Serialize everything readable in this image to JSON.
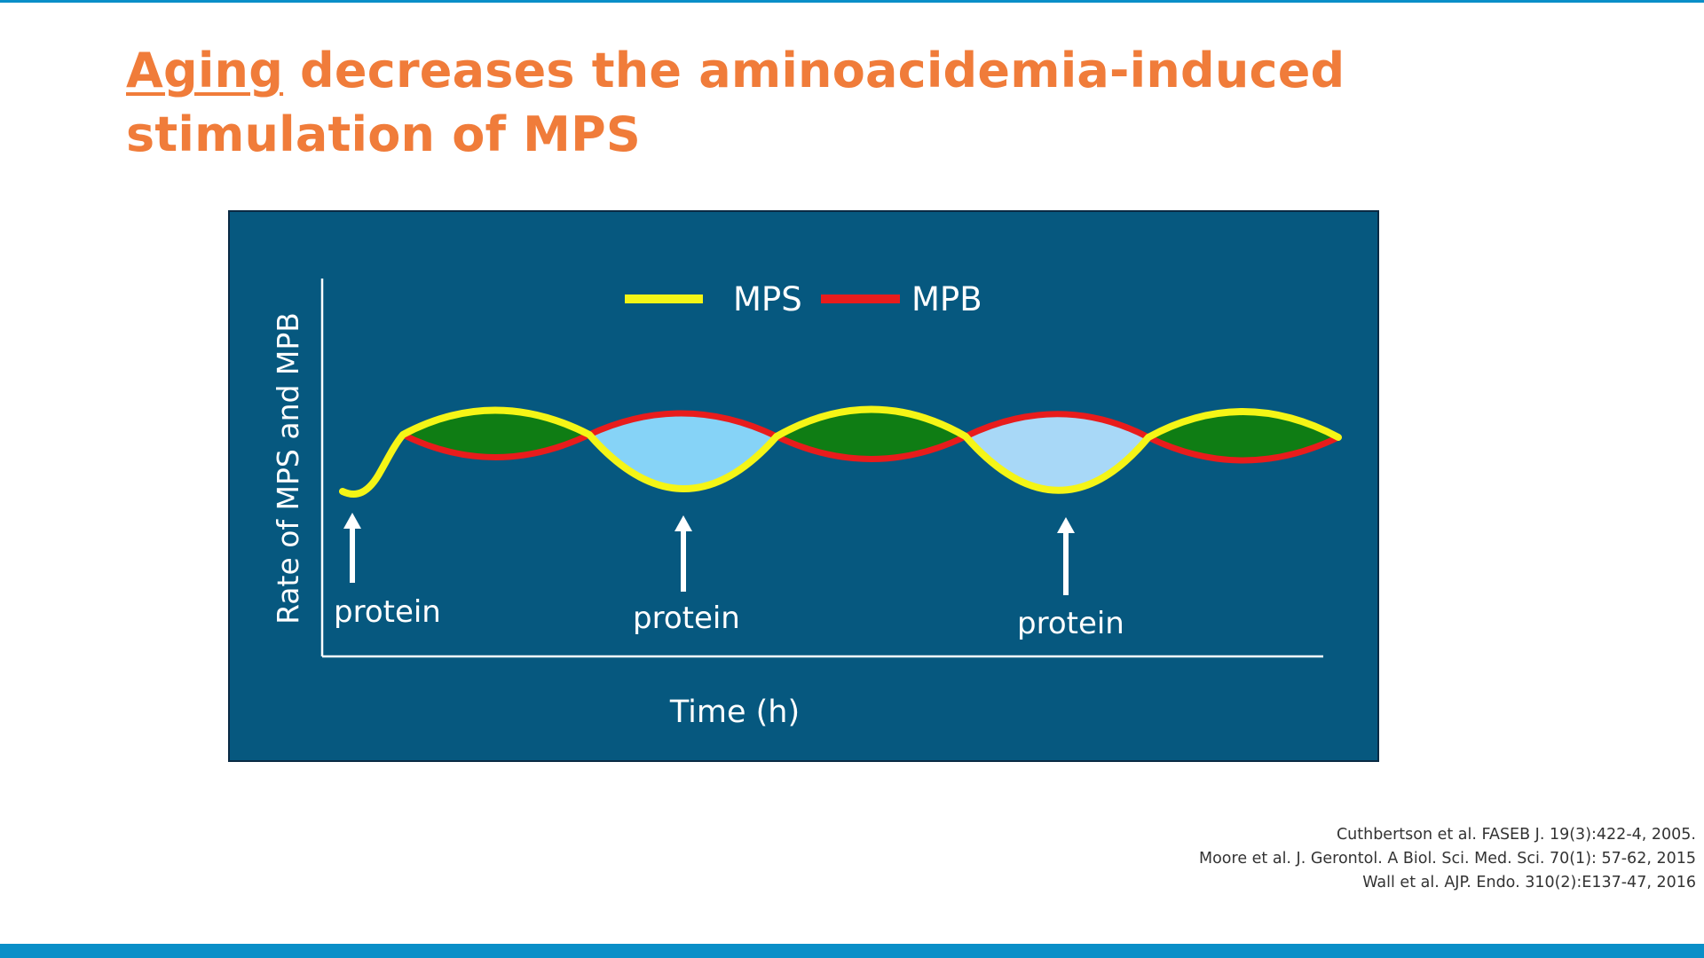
{
  "slide": {
    "title_keyword": "Aging",
    "title_rest": " decreases the aminoacidemia-induced stimulation of MPS"
  },
  "diagram": {
    "legend": {
      "mps_label": "MPS",
      "mpb_label": "MPB"
    },
    "y_axis_label": "Rate of MPS and MPB",
    "x_axis_label": "Time (h)",
    "intake_labels": [
      "protein",
      "protein",
      "protein"
    ]
  },
  "colors": {
    "accent_orange": "#f07c3a",
    "panel_background": "#06587f",
    "mps_line": "#f5f516",
    "mpb_line": "#e81c1c",
    "net_gain_fill": "#0f7d14",
    "net_loss_fill": "#86d3f7",
    "slide_rules": "#0a8fc8"
  },
  "citations": [
    "Cuthbertson et al. FASEB J. 19(3):422-4, 2005.",
    "Moore et al.  J. Gerontol. A Biol. Sci. Med. Sci. 70(1): 57-62, 2015",
    "Wall et al. AJP. Endo. 310(2):E137-47, 2016"
  ]
}
